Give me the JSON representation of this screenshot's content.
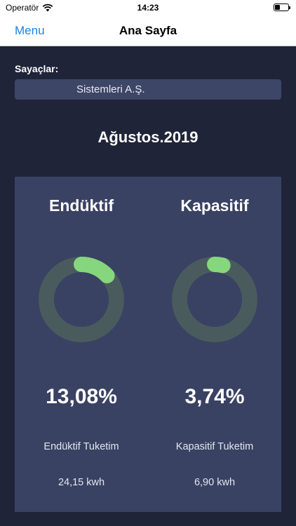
{
  "status_bar": {
    "carrier": "Operatör",
    "time": "14:23",
    "battery_level": 0.3
  },
  "nav": {
    "menu_label": "Menu",
    "title": "Ana Sayfa",
    "accent_color": "#1a82e6"
  },
  "meters": {
    "label": "Sayaçlar:",
    "selected": "Sistemleri  A.Ş."
  },
  "period": "Ağustos.2019",
  "cards": [
    {
      "heading": "Endüktif",
      "percent_text": "13,08%",
      "percent_value": 13.08,
      "consumption_label": "Endüktif Tuketim",
      "consumption_value": "24,15 kwh"
    },
    {
      "heading": "Kapasitif",
      "percent_text": "3,74%",
      "percent_value": 3.74,
      "consumption_label": "Kapasitif Tuketim",
      "consumption_value": "6,90 kwh"
    }
  ],
  "colors": {
    "background": "#1f2438",
    "panel": "#394262",
    "ring_track": "#4a5b5e",
    "ring_progress": "#86d67d"
  }
}
